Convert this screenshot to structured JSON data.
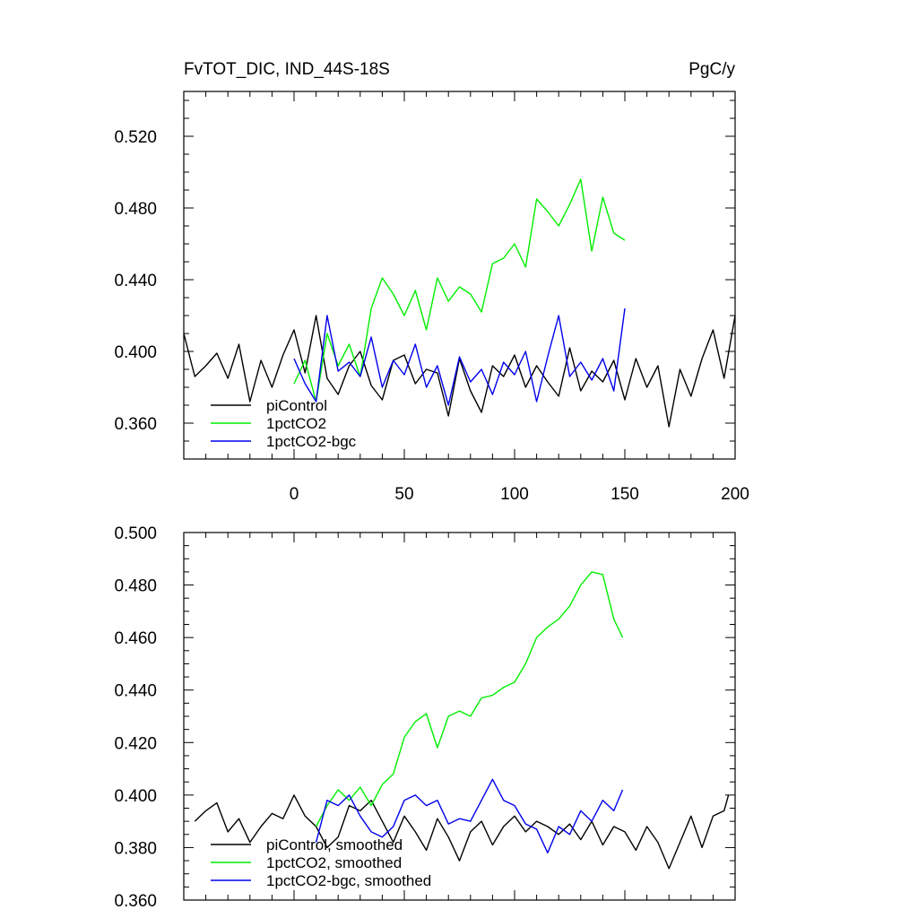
{
  "chart_data": [
    {
      "type": "line",
      "title": "FvTOT_DIC, IND_44S-18S",
      "units_label": "PgC/y",
      "xlim": [
        -50,
        200
      ],
      "ylim": [
        0.34,
        0.545
      ],
      "xticks": [
        0,
        50,
        100,
        150,
        200
      ],
      "yticks": [
        0.36,
        0.4,
        0.44,
        0.48,
        0.52
      ],
      "ytick_labels": [
        "0.360",
        "0.400",
        "0.440",
        "0.480",
        "0.520"
      ],
      "legend_position": "bottom-left",
      "series": [
        {
          "name": "piControl",
          "color": "#000000",
          "x": [
            -50,
            -45,
            -40,
            -35,
            -30,
            -25,
            -20,
            -15,
            -10,
            -5,
            0,
            5,
            10,
            15,
            20,
            25,
            30,
            35,
            40,
            45,
            50,
            55,
            60,
            65,
            70,
            75,
            80,
            85,
            90,
            95,
            100,
            105,
            110,
            115,
            120,
            125,
            130,
            135,
            140,
            145,
            150,
            155,
            160,
            165,
            170,
            175,
            180,
            185,
            190,
            195,
            200
          ],
          "y": [
            0.41,
            0.386,
            0.392,
            0.399,
            0.385,
            0.404,
            0.372,
            0.395,
            0.38,
            0.398,
            0.412,
            0.388,
            0.42,
            0.385,
            0.376,
            0.392,
            0.4,
            0.381,
            0.373,
            0.395,
            0.398,
            0.382,
            0.39,
            0.388,
            0.364,
            0.396,
            0.378,
            0.366,
            0.392,
            0.386,
            0.398,
            0.38,
            0.392,
            0.383,
            0.375,
            0.402,
            0.378,
            0.389,
            0.383,
            0.395,
            0.373,
            0.396,
            0.38,
            0.392,
            0.358,
            0.39,
            0.375,
            0.396,
            0.412,
            0.385,
            0.42
          ]
        },
        {
          "name": "1pctCO2",
          "color": "#00ee00",
          "x": [
            0,
            5,
            10,
            15,
            20,
            25,
            30,
            35,
            40,
            45,
            50,
            55,
            60,
            65,
            70,
            75,
            80,
            85,
            90,
            95,
            100,
            105,
            110,
            115,
            120,
            125,
            130,
            135,
            140,
            145,
            150
          ],
          "y": [
            0.382,
            0.395,
            0.372,
            0.41,
            0.392,
            0.404,
            0.386,
            0.424,
            0.441,
            0.432,
            0.42,
            0.434,
            0.412,
            0.441,
            0.428,
            0.436,
            0.432,
            0.422,
            0.449,
            0.452,
            0.46,
            0.447,
            0.485,
            0.478,
            0.47,
            0.482,
            0.496,
            0.456,
            0.486,
            0.466,
            0.462
          ]
        },
        {
          "name": "1pctCO2-bgc",
          "color": "#0000ee",
          "x": [
            0,
            5,
            10,
            15,
            20,
            25,
            30,
            35,
            40,
            45,
            50,
            55,
            60,
            65,
            70,
            75,
            80,
            85,
            90,
            95,
            100,
            105,
            110,
            115,
            120,
            125,
            130,
            135,
            140,
            145,
            150
          ],
          "y": [
            0.396,
            0.382,
            0.372,
            0.42,
            0.389,
            0.394,
            0.386,
            0.408,
            0.38,
            0.395,
            0.387,
            0.404,
            0.38,
            0.392,
            0.37,
            0.397,
            0.383,
            0.39,
            0.376,
            0.394,
            0.387,
            0.4,
            0.372,
            0.397,
            0.42,
            0.386,
            0.394,
            0.384,
            0.396,
            0.378,
            0.424
          ]
        }
      ]
    },
    {
      "type": "line",
      "xlim": [
        -50,
        200
      ],
      "ylim": [
        0.36,
        0.5
      ],
      "xticks": [
        0,
        50,
        100,
        150,
        200
      ],
      "yticks": [
        0.36,
        0.38,
        0.4,
        0.42,
        0.44,
        0.46,
        0.48,
        0.5
      ],
      "ytick_labels": [
        "0.360",
        "0.380",
        "0.400",
        "0.420",
        "0.440",
        "0.460",
        "0.480",
        "0.500"
      ],
      "legend_position": "bottom-left",
      "series": [
        {
          "name": "piControl, smoothed",
          "color": "#000000",
          "x": [
            -45,
            -40,
            -35,
            -30,
            -25,
            -20,
            -15,
            -10,
            -5,
            0,
            5,
            10,
            15,
            20,
            25,
            30,
            35,
            40,
            45,
            50,
            55,
            60,
            65,
            70,
            75,
            80,
            85,
            90,
            95,
            100,
            105,
            110,
            115,
            120,
            125,
            130,
            135,
            140,
            145,
            150,
            155,
            160,
            165,
            170,
            175,
            180,
            185,
            190,
            195,
            197
          ],
          "y": [
            0.39,
            0.394,
            0.397,
            0.386,
            0.391,
            0.382,
            0.388,
            0.393,
            0.391,
            0.4,
            0.392,
            0.388,
            0.38,
            0.384,
            0.396,
            0.394,
            0.398,
            0.39,
            0.382,
            0.392,
            0.386,
            0.379,
            0.391,
            0.384,
            0.375,
            0.386,
            0.39,
            0.381,
            0.388,
            0.392,
            0.386,
            0.39,
            0.388,
            0.385,
            0.389,
            0.383,
            0.39,
            0.381,
            0.388,
            0.386,
            0.379,
            0.388,
            0.382,
            0.372,
            0.382,
            0.392,
            0.38,
            0.392,
            0.394,
            0.4
          ]
        },
        {
          "name": "1pctCO2, smoothed",
          "color": "#00ee00",
          "x": [
            10,
            15,
            20,
            25,
            30,
            35,
            40,
            45,
            50,
            55,
            60,
            65,
            70,
            75,
            80,
            85,
            90,
            95,
            100,
            105,
            110,
            115,
            120,
            125,
            130,
            135,
            140,
            145,
            149
          ],
          "y": [
            0.388,
            0.396,
            0.402,
            0.398,
            0.403,
            0.396,
            0.404,
            0.408,
            0.422,
            0.428,
            0.431,
            0.418,
            0.43,
            0.432,
            0.43,
            0.437,
            0.438,
            0.441,
            0.443,
            0.45,
            0.46,
            0.464,
            0.467,
            0.472,
            0.48,
            0.485,
            0.484,
            0.467,
            0.46
          ]
        },
        {
          "name": "1pctCO2-bgc, smoothed",
          "color": "#0000ee",
          "x": [
            10,
            15,
            20,
            25,
            30,
            35,
            40,
            45,
            50,
            55,
            60,
            65,
            70,
            75,
            80,
            85,
            90,
            95,
            100,
            105,
            110,
            115,
            120,
            125,
            130,
            135,
            140,
            145,
            149
          ],
          "y": [
            0.382,
            0.398,
            0.396,
            0.4,
            0.392,
            0.386,
            0.384,
            0.388,
            0.398,
            0.4,
            0.396,
            0.398,
            0.389,
            0.391,
            0.39,
            0.398,
            0.406,
            0.398,
            0.396,
            0.389,
            0.387,
            0.378,
            0.388,
            0.385,
            0.394,
            0.39,
            0.398,
            0.394,
            0.402
          ]
        }
      ]
    }
  ]
}
